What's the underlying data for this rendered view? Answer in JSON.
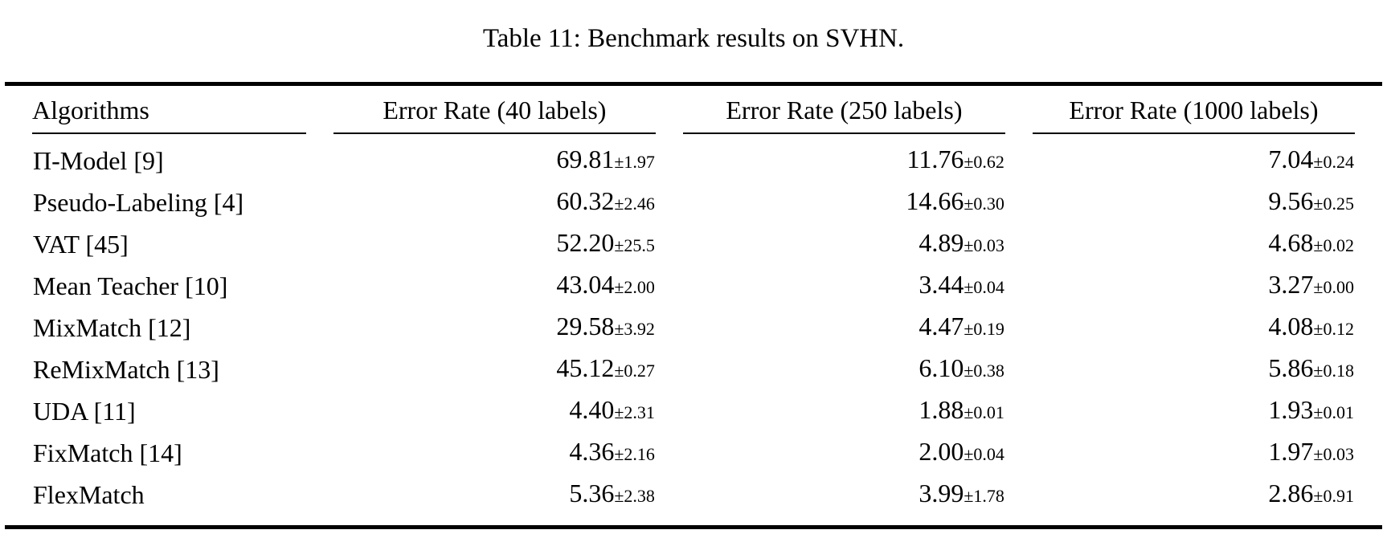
{
  "caption": "Table 11: Benchmark results on SVHN.",
  "colors": {
    "text": "#000000",
    "background": "#ffffff",
    "rule": "#000000"
  },
  "table": {
    "columns": [
      "Algorithms",
      "Error Rate (40 labels)",
      "Error Rate (250 labels)",
      "Error Rate (1000 labels)"
    ],
    "rows": [
      {
        "algorithm": "Π-Model [9]",
        "values": [
          {
            "mean": "69.81",
            "std": "±1.97"
          },
          {
            "mean": "11.76",
            "std": "±0.62"
          },
          {
            "mean": "7.04",
            "std": "±0.24"
          }
        ]
      },
      {
        "algorithm": "Pseudo-Labeling [4]",
        "values": [
          {
            "mean": "60.32",
            "std": "±2.46"
          },
          {
            "mean": "14.66",
            "std": "±0.30"
          },
          {
            "mean": "9.56",
            "std": "±0.25"
          }
        ]
      },
      {
        "algorithm": "VAT [45]",
        "values": [
          {
            "mean": "52.20",
            "std": "±25.5"
          },
          {
            "mean": "4.89",
            "std": "±0.03"
          },
          {
            "mean": "4.68",
            "std": "±0.02"
          }
        ]
      },
      {
        "algorithm": "Mean Teacher [10]",
        "values": [
          {
            "mean": "43.04",
            "std": "±2.00"
          },
          {
            "mean": "3.44",
            "std": "±0.04"
          },
          {
            "mean": "3.27",
            "std": "±0.00"
          }
        ]
      },
      {
        "algorithm": "MixMatch [12]",
        "values": [
          {
            "mean": "29.58",
            "std": "±3.92"
          },
          {
            "mean": "4.47",
            "std": "±0.19"
          },
          {
            "mean": "4.08",
            "std": "±0.12"
          }
        ]
      },
      {
        "algorithm": "ReMixMatch [13]",
        "values": [
          {
            "mean": "45.12",
            "std": "±0.27"
          },
          {
            "mean": "6.10",
            "std": "±0.38"
          },
          {
            "mean": "5.86",
            "std": "±0.18"
          }
        ]
      },
      {
        "algorithm": "UDA [11]",
        "values": [
          {
            "mean": "4.40",
            "std": "±2.31"
          },
          {
            "mean": "1.88",
            "std": "±0.01"
          },
          {
            "mean": "1.93",
            "std": "±0.01"
          }
        ]
      },
      {
        "algorithm": "FixMatch [14]",
        "values": [
          {
            "mean": "4.36",
            "std": "±2.16"
          },
          {
            "mean": "2.00",
            "std": "±0.04"
          },
          {
            "mean": "1.97",
            "std": "±0.03"
          }
        ]
      },
      {
        "algorithm": "FlexMatch",
        "values": [
          {
            "mean": "5.36",
            "std": "±2.38"
          },
          {
            "mean": "3.99",
            "std": "±1.78"
          },
          {
            "mean": "2.86",
            "std": "±0.91"
          }
        ]
      }
    ]
  }
}
